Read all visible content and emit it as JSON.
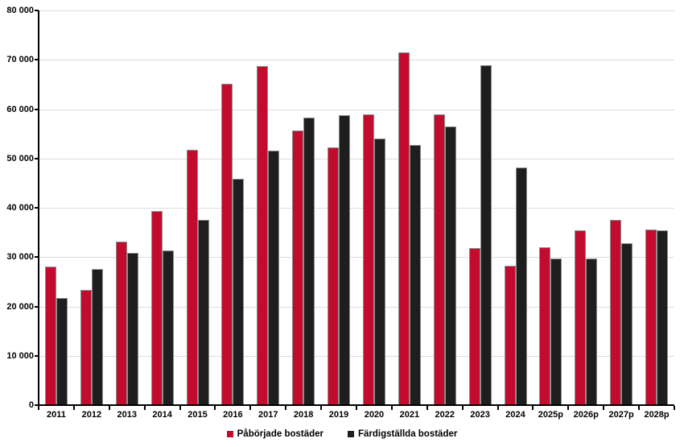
{
  "chart_data": {
    "type": "bar",
    "title": "",
    "xlabel": "",
    "ylabel": "",
    "categories": [
      "2011",
      "2012",
      "2013",
      "2014",
      "2015",
      "2016",
      "2017",
      "2018",
      "2019",
      "2020",
      "2021",
      "2022",
      "2023",
      "2024",
      "2025p",
      "2026p",
      "2027p",
      "2028p"
    ],
    "series": [
      {
        "name": "Påbörjade bostäder",
        "color": "#c30b2e",
        "values": [
          28100,
          23300,
          33200,
          39400,
          51700,
          65100,
          68700,
          55600,
          52300,
          59000,
          71500,
          58900,
          31900,
          28200,
          32000,
          35500,
          37600,
          35600
        ]
      },
      {
        "name": "Färdigställda bostäder",
        "color": "#1e1e1e",
        "values": [
          21700,
          27600,
          30900,
          31400,
          37500,
          45900,
          51600,
          58300,
          58700,
          54000,
          52800,
          56500,
          68900,
          48100,
          29700,
          29700,
          32800,
          35400
        ]
      }
    ],
    "ylim": [
      0,
      80000
    ],
    "ytick_step": 10000,
    "ytick_labels": [
      "0",
      "10 000",
      "20 000",
      "30 000",
      "40 000",
      "50 000",
      "60 000",
      "70 000",
      "80 000"
    ],
    "grid": "horizontal",
    "legend_position": "bottom"
  },
  "legend": {
    "started_label": "Påbörjade bostäder",
    "completed_label": "Färdigställda bostäder"
  },
  "colors": {
    "started_bar": "#c30b2e",
    "completed_bar": "#1e1e1e",
    "gridline": "#dcdcdc",
    "axis": "#000000",
    "bar_border": "#8d8d8d",
    "background": "#ffffff"
  }
}
